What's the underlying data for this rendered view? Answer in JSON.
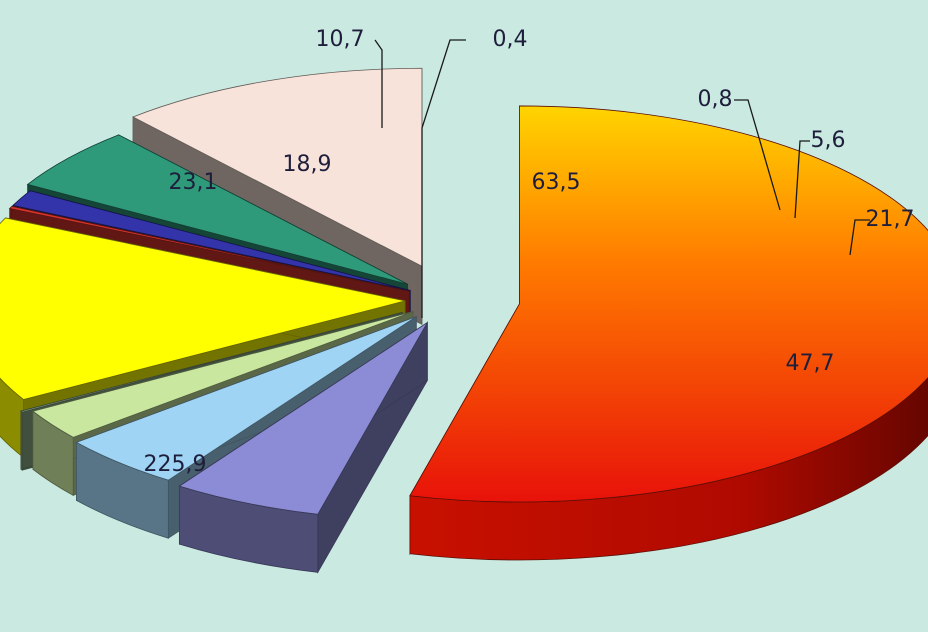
{
  "chart_data": {
    "type": "pie",
    "style": "3d-exploded",
    "values": [
      "225,9",
      "23,1",
      "18,9",
      "10,7",
      "0,4",
      "63,5",
      "0,8",
      "5,6",
      "21,7",
      "47,7"
    ],
    "slices": [
      {
        "value": 225.9,
        "label": "225,9",
        "color": "#e8250a",
        "label_mode": "inside"
      },
      {
        "value": 23.1,
        "label": "23,1",
        "color": "#8c8cd6",
        "label_mode": "inside"
      },
      {
        "value": 18.9,
        "label": "18,9",
        "color": "#9fd4f4",
        "label_mode": "inside"
      },
      {
        "value": 10.7,
        "label": "10,7",
        "color": "#c9e79f",
        "label_mode": "callout"
      },
      {
        "value": 0.4,
        "label": "0,4",
        "color": "#8fb08a",
        "label_mode": "callout"
      },
      {
        "value": 63.5,
        "label": "63,5",
        "color": "#ffff00",
        "label_mode": "inside"
      },
      {
        "value": 0.8,
        "label": "0,8",
        "color": "#d8332a",
        "label_mode": "callout"
      },
      {
        "value": 5.6,
        "label": "5,6",
        "color": "#3333aa",
        "label_mode": "callout"
      },
      {
        "value": 21.7,
        "label": "21,7",
        "color": "#2e9a7a",
        "label_mode": "callout"
      },
      {
        "value": 47.7,
        "label": "47,7",
        "color": "#f7e3da",
        "label_mode": "inside"
      }
    ],
    "title": "",
    "legend": "none"
  }
}
